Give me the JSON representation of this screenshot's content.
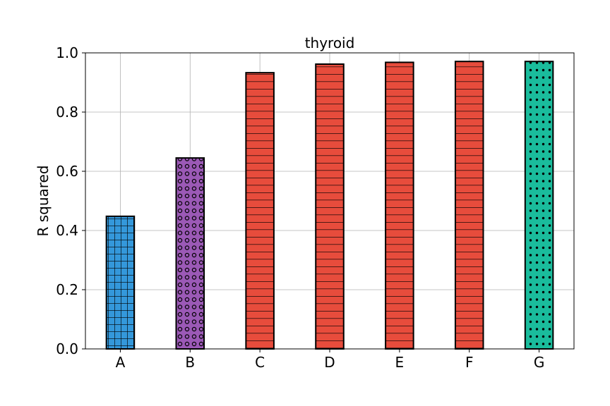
{
  "chart_data": {
    "type": "bar",
    "title": "thyroid",
    "xlabel": "",
    "ylabel": "R squared",
    "categories": [
      "A",
      "B",
      "C",
      "D",
      "E",
      "F",
      "G"
    ],
    "values": [
      0.448,
      0.645,
      0.933,
      0.962,
      0.968,
      0.971,
      0.971
    ],
    "ylim": [
      0,
      1.0
    ],
    "yticks": [
      "0.0",
      "0.2",
      "0.4",
      "0.6",
      "0.8",
      "1.0"
    ],
    "grid": true,
    "bar_colors": [
      "#3498db",
      "#9b59b6",
      "#e74c3c",
      "#e74c3c",
      "#e74c3c",
      "#e74c3c",
      "#1abc9c"
    ],
    "bar_patterns": [
      "grid",
      "rings",
      "hlines",
      "hlines",
      "hlines",
      "hlines",
      "dots"
    ]
  }
}
